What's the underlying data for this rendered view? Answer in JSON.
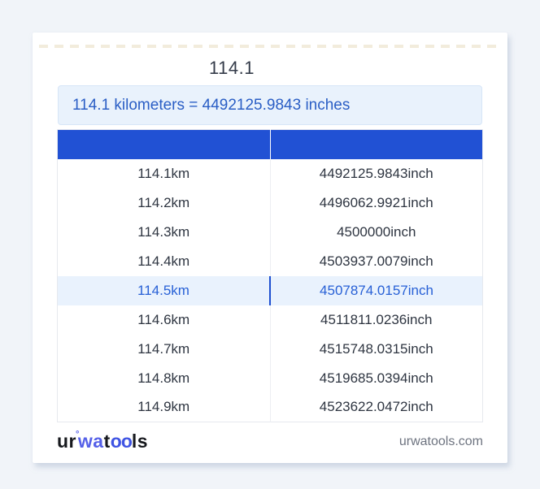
{
  "page": {
    "title": "114.1"
  },
  "result_box": {
    "text": "114.1 kilometers = 4492125.9843 inches"
  },
  "table": {
    "headers": [
      "",
      ""
    ],
    "rows": [
      {
        "km": "114.1km",
        "inch": "4492125.9843inch",
        "highlight": false
      },
      {
        "km": "114.2km",
        "inch": "4496062.9921inch",
        "highlight": false
      },
      {
        "km": "114.3km",
        "inch": "4500000inch",
        "highlight": false
      },
      {
        "km": "114.4km",
        "inch": "4503937.0079inch",
        "highlight": false
      },
      {
        "km": "114.5km",
        "inch": "4507874.0157inch",
        "highlight": true
      },
      {
        "km": "114.6km",
        "inch": "4511811.0236inch",
        "highlight": false
      },
      {
        "km": "114.7km",
        "inch": "4515748.0315inch",
        "highlight": false
      },
      {
        "km": "114.8km",
        "inch": "4519685.0394inch",
        "highlight": false
      },
      {
        "km": "114.9km",
        "inch": "4523622.0472inch",
        "highlight": false
      }
    ]
  },
  "footer": {
    "logo": {
      "seg1": "ur",
      "degree": "°",
      "seg2": "wa",
      "seg3": "t",
      "seg4": "oo",
      "seg5": "ls"
    },
    "domain": "urwatools.com"
  },
  "colors": {
    "page_background": "#f1f4f9",
    "card_background": "#ffffff",
    "header_blue": "#2151d4",
    "result_box_background": "#e9f2fc",
    "result_text_blue": "#2a5ec5",
    "highlight_row_background": "#e9f2fd",
    "highlight_text_blue": "#2760d6",
    "highlight_divider_blue": "#1d4fd0",
    "logo_blue": "#5560e8",
    "body_text": "#2e3541",
    "domain_text_gray": "#6e7480"
  }
}
